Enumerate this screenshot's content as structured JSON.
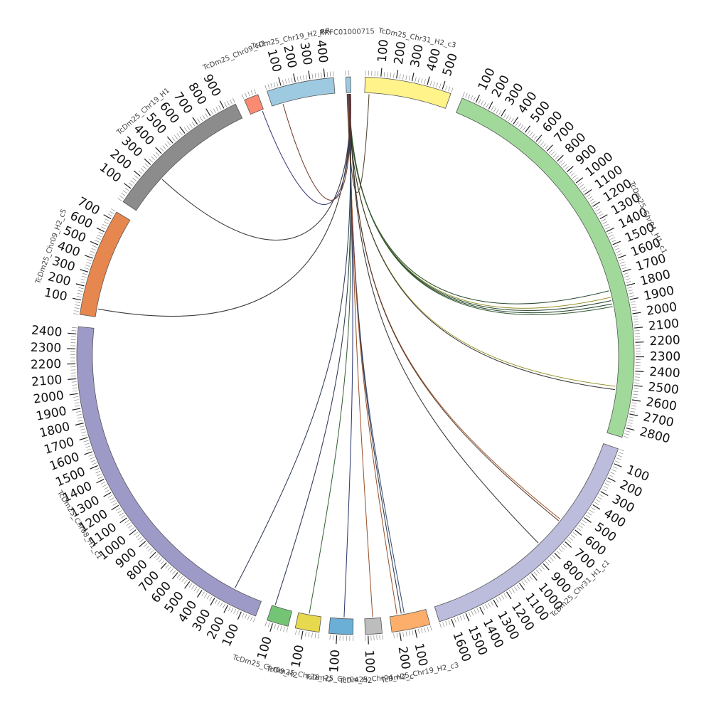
{
  "colors": {
    "outline": "#555555",
    "tick": "#222222",
    "minor_tick": "#777777",
    "label": "#444444"
  },
  "circos": {
    "segments": [
      {
        "id": "TcDm25_Chr31_H2_c3",
        "label": "TcDm25_Chr31_H2_c3",
        "start_deg": 2.0,
        "end_deg": 20.0,
        "length": 560,
        "color": "#FFF38A",
        "tick_step": 100
      },
      {
        "id": "TcDm25_Chr04_H1_c1",
        "label": "TcDm25_Chr04_H1_c1",
        "start_deg": 22.5,
        "end_deg": 107.0,
        "length": 2870,
        "color": "#A1D99B",
        "tick_step": 100
      },
      {
        "id": "TcDm25_Chr31_H1_c1",
        "label": "TcDm25_Chr31_H1_c1",
        "start_deg": 109.5,
        "end_deg": 162.5,
        "length": 1680,
        "color": "#BCBDDC",
        "tick_step": 100
      },
      {
        "id": "TcDm25_Chr19_H2_c3",
        "label": "TcDm25_Chr19_H2_c3",
        "start_deg": 164.5,
        "end_deg": 172.5,
        "length": 250,
        "color": "#FDAE6B",
        "tick_step": 100
      },
      {
        "id": "TcDm25_ChrUn_c1",
        "label": "TcDm25_Chr04_H2_c",
        "start_deg": 174.5,
        "end_deg": 178.0,
        "length": 120,
        "color": "#BDBDBD",
        "tick_step": 100
      },
      {
        "id": "TcDm25_Chr04_H2",
        "label": "TcDm25_Chr04_H2",
        "start_deg": 180.5,
        "end_deg": 185.5,
        "length": 150,
        "color": "#6BAED6",
        "tick_step": 100
      },
      {
        "id": "TcDm25_Chr28_H2",
        "label": "TcDm25_Chr28_H2",
        "start_deg": 187.5,
        "end_deg": 192.5,
        "length": 150,
        "color": "#E7D84E",
        "tick_step": 100
      },
      {
        "id": "TcDm25_Chr09_H2",
        "label": "TcDm25_Chr09_H2",
        "start_deg": 194.0,
        "end_deg": 198.5,
        "length": 140,
        "color": "#74C476",
        "tick_step": 100
      },
      {
        "id": "TcDm25_Chr08_H1_c1",
        "label": "TcDm25_Chr08_H1_c1",
        "start_deg": 201.0,
        "end_deg": 276.0,
        "length": 2450,
        "color": "#9E9AC8",
        "tick_step": 100
      },
      {
        "id": "TcDm25_Chr09_H2_c5",
        "label": "TcDm25_Chr09_H2_c5",
        "start_deg": 278.5,
        "end_deg": 301.0,
        "length": 760,
        "color": "#E6874F",
        "tick_step": 100
      },
      {
        "id": "TcDm25_Chr19_H1",
        "label": "TcDm25_Chr19_H1",
        "start_deg": 303.5,
        "end_deg": 334.5,
        "length": 980,
        "color": "#8C8C8C",
        "tick_step": 100
      },
      {
        "id": "TcDm25_Chr09_H2b",
        "label": "TcDm25_Chr09_H2",
        "start_deg": 336.5,
        "end_deg": 339.5,
        "length": 90,
        "color": "#FB8A72",
        "tick_step": 100
      },
      {
        "id": "TcDm25_Chr19_H2_RR",
        "label": "TcDm25_Chr19_H2_RR",
        "start_deg": 341.5,
        "end_deg": 355.5,
        "length": 460,
        "color": "#9ECAE1",
        "tick_step": 100
      },
      {
        "id": "RRFC01000715",
        "label": "RRFC01000715",
        "start_deg": 358.0,
        "end_deg": 359.0,
        "length": 30,
        "color": "#9ECAE1",
        "tick_step": 100
      }
    ],
    "links": [
      {
        "a": "RRFC01000715",
        "a_pos": 10,
        "b": "TcDm25_Chr04_H1_c1",
        "b_pos": 1805,
        "color": "#1f4e2a"
      },
      {
        "a": "RRFC01000715",
        "a_pos": 12,
        "b": "TcDm25_Chr04_H1_c1",
        "b_pos": 1855,
        "color": "#c9c23a"
      },
      {
        "a": "RRFC01000715",
        "a_pos": 14,
        "b": "TcDm25_Chr04_H1_c1",
        "b_pos": 1880,
        "color": "#24522e"
      },
      {
        "a": "RRFC01000715",
        "a_pos": 16,
        "b": "TcDm25_Chr04_H1_c1",
        "b_pos": 1905,
        "color": "#1f4e2a"
      },
      {
        "a": "RRFC01000715",
        "a_pos": 18,
        "b": "TcDm25_Chr04_H1_c1",
        "b_pos": 1925,
        "color": "#3c6e3a"
      },
      {
        "a": "RRFC01000715",
        "a_pos": 8,
        "b": "TcDm25_Chr04_H1_c1",
        "b_pos": 2520,
        "color": "#c9c23a"
      },
      {
        "a": "RRFC01000715",
        "a_pos": 9,
        "b": "TcDm25_Chr04_H1_c1",
        "b_pos": 2545,
        "color": "#333333"
      },
      {
        "a": "RRFC01000715",
        "a_pos": 20,
        "b": "TcDm25_Chr31_H1_c1",
        "b_pos": 605,
        "color": "#c8642a"
      },
      {
        "a": "RRFC01000715",
        "a_pos": 21,
        "b": "TcDm25_Chr31_H1_c1",
        "b_pos": 620,
        "color": "#5a3a2a"
      },
      {
        "a": "RRFC01000715",
        "a_pos": 22,
        "b": "TcDm25_Chr31_H1_c1",
        "b_pos": 830,
        "color": "#333333"
      },
      {
        "a": "RRFC01000715",
        "a_pos": 11,
        "b": "TcDm25_Chr19_H2_c3",
        "b_pos": 150,
        "color": "#3b5a8a"
      },
      {
        "a": "RRFC01000715",
        "a_pos": 12,
        "b": "TcDm25_Chr19_H2_c3",
        "b_pos": 170,
        "color": "#2b3b5a"
      },
      {
        "a": "RRFC01000715",
        "a_pos": 13,
        "b": "TcDm25_Chr19_H2_c3",
        "b_pos": 200,
        "color": "#c8642a"
      },
      {
        "a": "RRFC01000715",
        "a_pos": 15,
        "b": "TcDm25_ChrUn_c1",
        "b_pos": 60,
        "color": "#c8642a"
      },
      {
        "a": "RRFC01000715",
        "a_pos": 17,
        "b": "TcDm25_Chr04_H2",
        "b_pos": 60,
        "color": "#2b3b8a"
      },
      {
        "a": "RRFC01000715",
        "a_pos": 19,
        "b": "TcDm25_Chr28_H2",
        "b_pos": 80,
        "color": "#3b7a3a"
      },
      {
        "a": "RRFC01000715",
        "a_pos": 23,
        "b": "TcDm25_Chr09_H2",
        "b_pos": 120,
        "color": "#2b3b5a"
      },
      {
        "a": "RRFC01000715",
        "a_pos": 24,
        "b": "TcDm25_Chr08_H1_c1",
        "b_pos": 210,
        "color": "#2b3b5a"
      },
      {
        "a": "RRFC01000715",
        "a_pos": 25,
        "b": "TcDm25_Chr09_H2_c5",
        "b_pos": 60,
        "color": "#333333"
      },
      {
        "a": "RRFC01000715",
        "a_pos": 26,
        "b": "TcDm25_Chr19_H1",
        "b_pos": 280,
        "color": "#333333"
      },
      {
        "a": "RRFC01000715",
        "a_pos": 27,
        "b": "TcDm25_Chr09_H2b",
        "b_pos": 80,
        "color": "#3b3b8a"
      },
      {
        "a": "RRFC01000715",
        "a_pos": 28,
        "b": "TcDm25_Chr19_H2_RR",
        "b_pos": 80,
        "color": "#8a3a2a"
      },
      {
        "a": "RRFC01000715",
        "a_pos": 5,
        "b": "TcDm25_Chr31_H2_c3",
        "b_pos": 30,
        "color": "#5a4a2a"
      }
    ]
  }
}
